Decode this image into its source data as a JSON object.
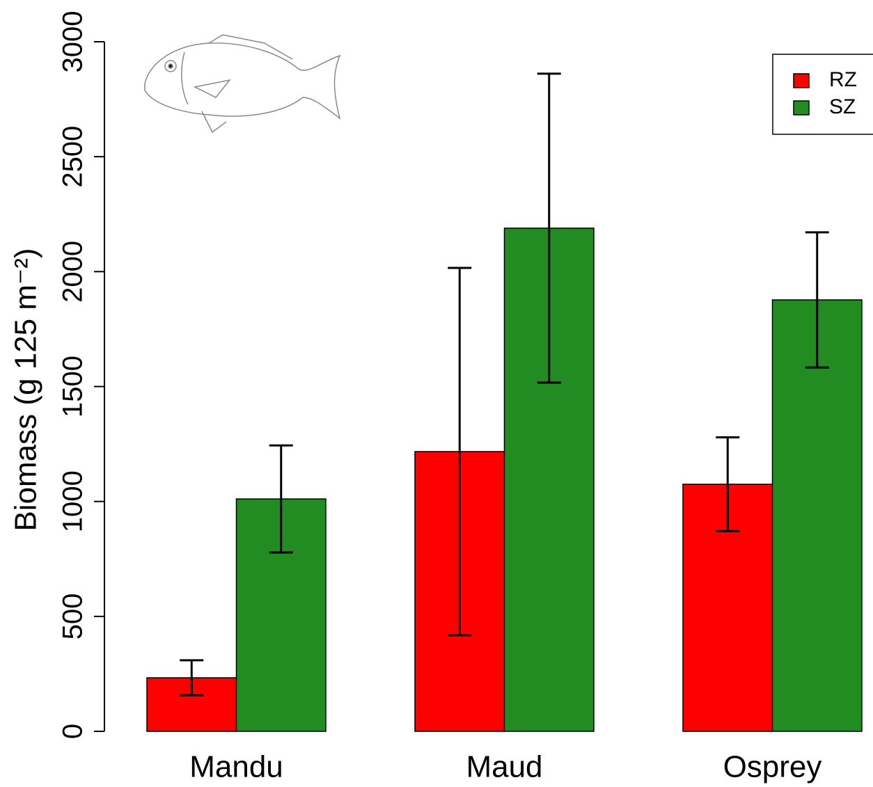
{
  "chart_data": {
    "type": "bar",
    "ylabel": "Biomass (g 125 m⁻²)",
    "categories": [
      "Mandu",
      "Maud",
      "Osprey"
    ],
    "series": [
      {
        "name": "RZ",
        "color": "#ff0000",
        "values": [
          233,
          1217,
          1075
        ],
        "errors": [
          76,
          799,
          204
        ]
      },
      {
        "name": "SZ",
        "color": "#228b22",
        "values": [
          1011,
          2189,
          1877
        ],
        "errors": [
          233,
          672,
          294
        ]
      }
    ],
    "ylim": [
      0,
      3000
    ],
    "yticks": [
      0,
      500,
      1000,
      1500,
      2000,
      2500,
      3000
    ],
    "legend": "top-right"
  }
}
